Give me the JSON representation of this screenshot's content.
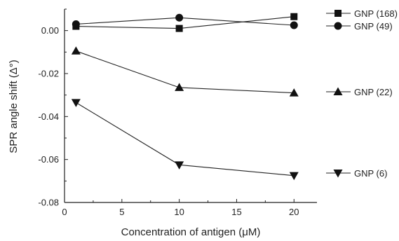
{
  "chart_data": {
    "type": "line",
    "xlabel": "Concentration of antigen (μM)",
    "ylabel": "SPR angle shift (Δ°)",
    "xlim": [
      0,
      22
    ],
    "ylim": [
      -0.08,
      0.01
    ],
    "xticks": [
      0,
      5,
      10,
      15,
      20
    ],
    "xtick_labels": [
      "0",
      "5",
      "10",
      "15",
      "20"
    ],
    "yticks": [
      -0.08,
      -0.06,
      -0.04,
      -0.02,
      0.0
    ],
    "ytick_labels": [
      "-0.08",
      "-0.06",
      "-0.04",
      "-0.02",
      "0.00"
    ],
    "legend_position": "right",
    "x": [
      1,
      10,
      20
    ],
    "series": [
      {
        "name": "GNP (168)",
        "marker": "square",
        "values": [
          0.002,
          0.001,
          0.0065
        ]
      },
      {
        "name": "GNP (49)",
        "marker": "circle",
        "values": [
          0.003,
          0.006,
          0.0025
        ]
      },
      {
        "name": "GNP (22)",
        "marker": "triangle-up",
        "values": [
          -0.0095,
          -0.0265,
          -0.029
        ]
      },
      {
        "name": "GNP (6)",
        "marker": "triangle-down",
        "values": [
          -0.0335,
          -0.0625,
          -0.0675
        ]
      }
    ],
    "colors": {
      "line": "#222222",
      "marker": "#111111",
      "axis": "#222222"
    }
  }
}
